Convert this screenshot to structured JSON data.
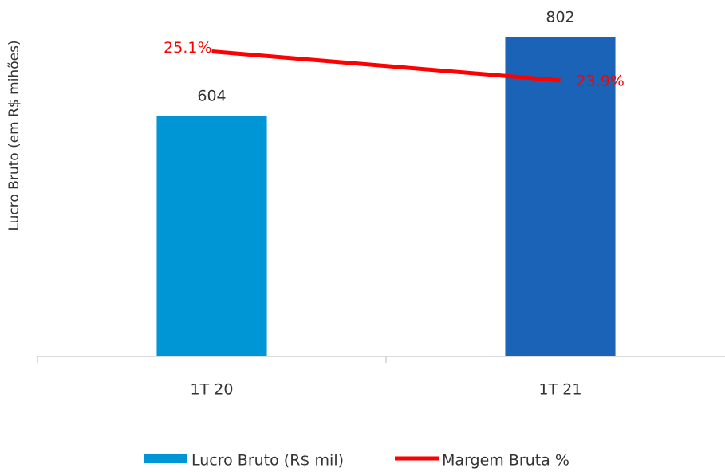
{
  "chart_data": {
    "type": "bar",
    "ylabel": "Lucro Bruto (em R$ mihões)",
    "categories": [
      "1T 20",
      "1T 21"
    ],
    "series": [
      {
        "name": "Lucro Bruto (R$ mil)",
        "type": "bar",
        "color": "#0096d6",
        "colors": [
          "#0096d6",
          "#1a63b6"
        ],
        "values": [
          604,
          802
        ]
      },
      {
        "name": "Margem Bruta %",
        "type": "line",
        "axis": "y2",
        "color": "#ff0000",
        "values": [
          25.1,
          23.9
        ],
        "value_labels": [
          "25.1%",
          "23.9%"
        ]
      }
    ],
    "ylim": [
      0,
      850
    ],
    "y2lim": [
      12.5,
      26.5
    ],
    "grid": false,
    "legend": "bottom"
  }
}
